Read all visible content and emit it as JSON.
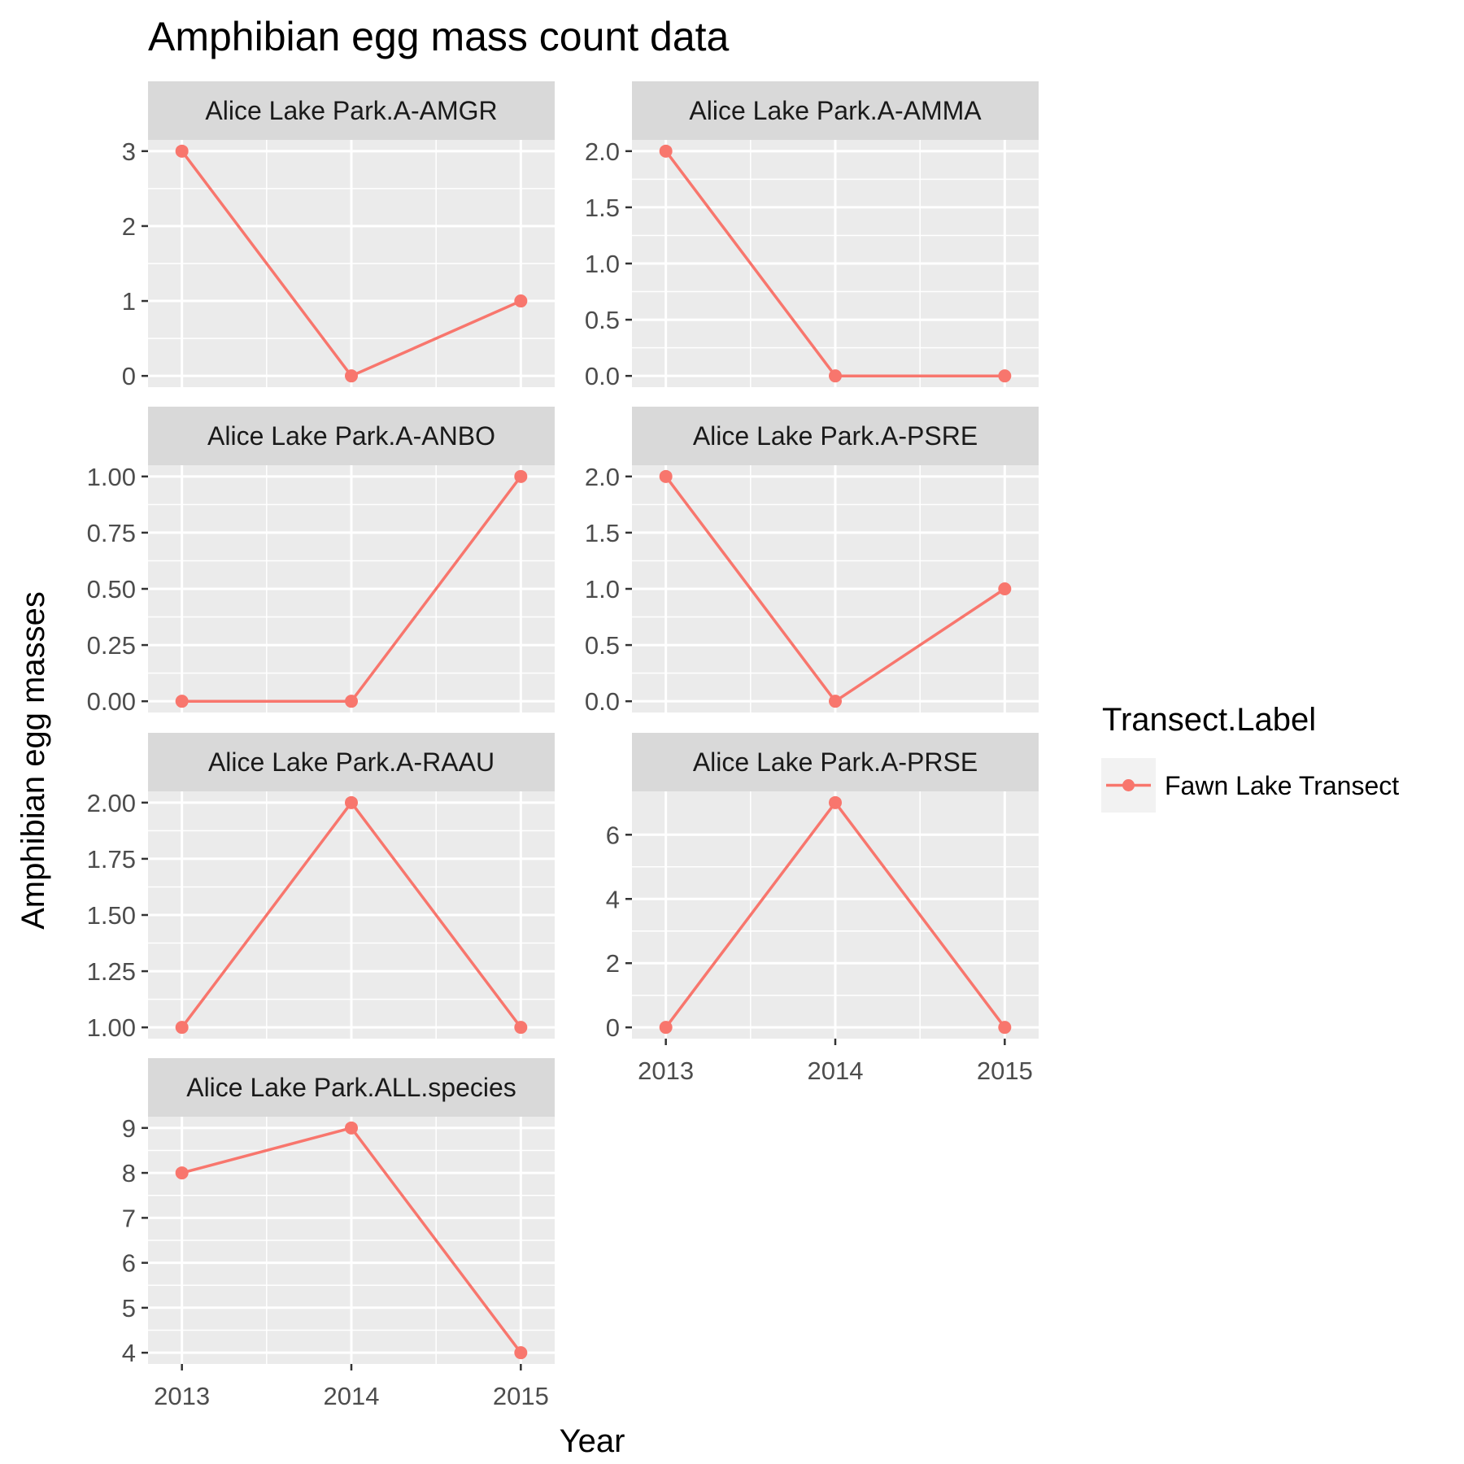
{
  "chart_data": {
    "type": "line",
    "title": "Amphibian egg mass count data",
    "xlabel": "Year",
    "ylabel": "Amphibian egg masses",
    "x": [
      2013,
      2014,
      2015
    ],
    "x_tick_labels": [
      "2013",
      "2014",
      "2015"
    ],
    "legend": {
      "title": "Transect.Label",
      "entries": [
        "Fawn Lake Transect"
      ],
      "placement": "right"
    },
    "series_color": "#F8766D",
    "colors": {
      "panel_background": "#EBEBEB",
      "strip_background": "#D9D9D9",
      "grid": "#FFFFFF",
      "tick_text": "#4D4D4D"
    },
    "grid": true,
    "panels": [
      {
        "label": "Alice Lake Park.A-AMGR",
        "values": [
          3,
          0,
          1
        ],
        "ylim": [
          -0.15,
          3.15
        ],
        "yticks": [
          0,
          1,
          2,
          3
        ],
        "ytick_labels": [
          "0",
          "1",
          "2",
          "3"
        ]
      },
      {
        "label": "Alice Lake Park.A-AMMA",
        "values": [
          2,
          0,
          0
        ],
        "ylim": [
          -0.1,
          2.1
        ],
        "yticks": [
          0,
          0.5,
          1,
          1.5,
          2
        ],
        "ytick_labels": [
          "0.0",
          "0.5",
          "1.0",
          "1.5",
          "2.0"
        ]
      },
      {
        "label": "Alice Lake Park.A-ANBO",
        "values": [
          0,
          0,
          1
        ],
        "ylim": [
          -0.05,
          1.05
        ],
        "yticks": [
          0,
          0.25,
          0.5,
          0.75,
          1
        ],
        "ytick_labels": [
          "0.00",
          "0.25",
          "0.50",
          "0.75",
          "1.00"
        ]
      },
      {
        "label": "Alice Lake Park.A-PSRE",
        "values": [
          2,
          0,
          1
        ],
        "ylim": [
          -0.1,
          2.1
        ],
        "yticks": [
          0,
          0.5,
          1,
          1.5,
          2
        ],
        "ytick_labels": [
          "0.0",
          "0.5",
          "1.0",
          "1.5",
          "2.0"
        ]
      },
      {
        "label": "Alice Lake Park.A-RAAU",
        "values": [
          1,
          2,
          1
        ],
        "ylim": [
          0.95,
          2.05
        ],
        "yticks": [
          1,
          1.25,
          1.5,
          1.75,
          2
        ],
        "ytick_labels": [
          "1.00",
          "1.25",
          "1.50",
          "1.75",
          "2.00"
        ]
      },
      {
        "label": "Alice Lake Park.A-PRSE",
        "values": [
          0,
          7,
          0
        ],
        "ylim": [
          -0.35,
          7.35
        ],
        "yticks": [
          0,
          2,
          4,
          6
        ],
        "ytick_labels": [
          "0",
          "2",
          "4",
          "6"
        ]
      },
      {
        "label": "Alice Lake Park.ALL.species",
        "values": [
          8,
          9,
          4
        ],
        "ylim": [
          3.75,
          9.25
        ],
        "yticks": [
          4,
          5,
          6,
          7,
          8,
          9
        ],
        "ytick_labels": [
          "4",
          "5",
          "6",
          "7",
          "8",
          "9"
        ]
      }
    ]
  }
}
